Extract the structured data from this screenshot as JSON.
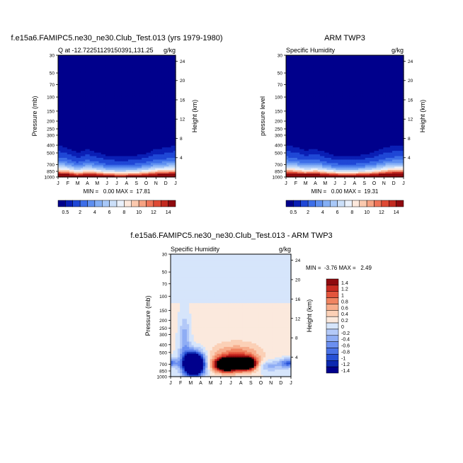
{
  "page_title_left": "f.e15a6.FAMIPC5.ne30_ne30.Club_Test.013 (yrs 1979-1980)",
  "page_title_right": "ARM TWP3",
  "diff_title": "f.e15a6.FAMIPC5.ne30_ne30.Club_Test.013 - ARM TWP3",
  "colors": {
    "full_scale": [
      "#00008c",
      "#0a1fb5",
      "#1f47d6",
      "#3d6ee8",
      "#5e8ff0",
      "#84aff5",
      "#a8c8f8",
      "#cbdff9",
      "#eaf1fb",
      "#fde8dc",
      "#fbc9ae",
      "#f6a282",
      "#ee7458",
      "#de4a35",
      "#c22a20",
      "#8f0a0f"
    ],
    "diff_scale": [
      "#00008c",
      "#0b28b0",
      "#2650d5",
      "#4a72e6",
      "#6b8ff0",
      "#8fadf4",
      "#b3c9f8",
      "#d6e5fb",
      "#fbe9dd",
      "#fbd0b6",
      "#f7ad8c",
      "#f08461",
      "#e3553d",
      "#c92b22",
      "#8f0a0f"
    ]
  },
  "chart_data": [
    {
      "type": "heatmap",
      "name": "model",
      "left_title": "Q at -12.72251129150391,131.25",
      "right_title": "g/kg",
      "ylabel": "Pressure (mb)",
      "ylabel_right": "Height (km)",
      "x_ticks": [
        "J",
        "F",
        "M",
        "A",
        "M",
        "J",
        "J",
        "A",
        "S",
        "O",
        "N",
        "D",
        "J"
      ],
      "y_ticks": [
        "30",
        "50",
        "70",
        "100",
        "150",
        "200",
        "250",
        "300",
        "400",
        "500",
        "700",
        "850",
        "1000"
      ],
      "y_ticks_right": [
        "24",
        "20",
        "16",
        "12",
        "8",
        "4"
      ],
      "stats": "MIN =   0.00 MAX =  17.81",
      "moisture_top_km": [
        7.5,
        6.8,
        5.9,
        6.6,
        5.9,
        5.2,
        5.0,
        5.0,
        5.3,
        5.7,
        6.6,
        6.8,
        7.5
      ],
      "surface_max": [
        17.5,
        17.2,
        14.5,
        16.5,
        15.8,
        14.2,
        13.9,
        14.0,
        14.5,
        15.5,
        16.8,
        17.8,
        17.5
      ]
    },
    {
      "type": "heatmap",
      "name": "obs",
      "left_title": "Specific Humidity",
      "right_title": "g/kg",
      "ylabel": "pressure level",
      "ylabel_right": "Height (km)",
      "x_ticks": [
        "J",
        "F",
        "M",
        "A",
        "M",
        "J",
        "J",
        "A",
        "S",
        "O",
        "N",
        "D",
        "J"
      ],
      "y_ticks": [
        "30",
        "50",
        "70",
        "100",
        "150",
        "200",
        "250",
        "300",
        "400",
        "500",
        "700",
        "850",
        "1000"
      ],
      "y_ticks_right": [
        "24",
        "20",
        "16",
        "12",
        "8",
        "4"
      ],
      "stats": "MIN =   0.00 MAX =  19.31",
      "moisture_top_km": [
        7.4,
        7.0,
        6.2,
        6.6,
        5.8,
        5.1,
        5.0,
        5.0,
        5.3,
        5.9,
        6.8,
        7.2,
        7.4
      ],
      "surface_max": [
        18.8,
        18.0,
        17.0,
        17.5,
        16.6,
        15.4,
        15.0,
        15.2,
        15.6,
        16.4,
        17.6,
        19.3,
        18.8
      ]
    },
    {
      "type": "heatmap",
      "name": "difference",
      "left_title": "Specific Humidity",
      "right_title": "g/kg",
      "ylabel": "Pressure (mb)",
      "ylabel_right": "Height (km)",
      "x_ticks": [
        "J",
        "F",
        "M",
        "A",
        "M",
        "J",
        "J",
        "A",
        "S",
        "O",
        "N",
        "D",
        "J"
      ],
      "y_ticks": [
        "30",
        "50",
        "70",
        "100",
        "150",
        "200",
        "250",
        "300",
        "400",
        "500",
        "700",
        "850",
        "1000"
      ],
      "y_ticks_right": [
        "24",
        "20",
        "16",
        "12",
        "8",
        "4"
      ],
      "stats": "MIN =  -3.76 MAX =   2.49",
      "anomalies": [
        {
          "month": 2.3,
          "km": 2.6,
          "amp": -3.7,
          "sx": 0.7,
          "sy": 1.6
        },
        {
          "month": 1.4,
          "km": 7.5,
          "amp": -0.6,
          "sx": 0.4,
          "sy": 3.5
        },
        {
          "month": 5.6,
          "km": 2.4,
          "amp": 2.5,
          "sx": 0.9,
          "sy": 1.0
        },
        {
          "month": 7.6,
          "km": 2.6,
          "amp": 2.4,
          "sx": 0.7,
          "sy": 0.9
        },
        {
          "month": 6.6,
          "km": 4.2,
          "amp": 0.8,
          "sx": 1.6,
          "sy": 1.6
        },
        {
          "month": 11.8,
          "km": 2.8,
          "amp": -1.0,
          "sx": 0.6,
          "sy": 0.6
        },
        {
          "month": 9.8,
          "km": 2.2,
          "amp": -0.5,
          "sx": 1.0,
          "sy": 0.8
        },
        {
          "month": 6.0,
          "km": 10.0,
          "amp": 0.12,
          "sx": 5.0,
          "sy": 4.0
        }
      ]
    }
  ],
  "colorbar_full": {
    "levels": [
      "0.5",
      "2",
      "4",
      "6",
      "8",
      "10",
      "12",
      "14"
    ]
  },
  "colorbar_diff": {
    "levels": [
      "1.4",
      "1.2",
      "1",
      "0.8",
      "0.6",
      "0.4",
      "0.2",
      "0",
      "-0.2",
      "-0.4",
      "-0.6",
      "-0.8",
      "-1",
      "-1.2",
      "-1.4"
    ]
  }
}
